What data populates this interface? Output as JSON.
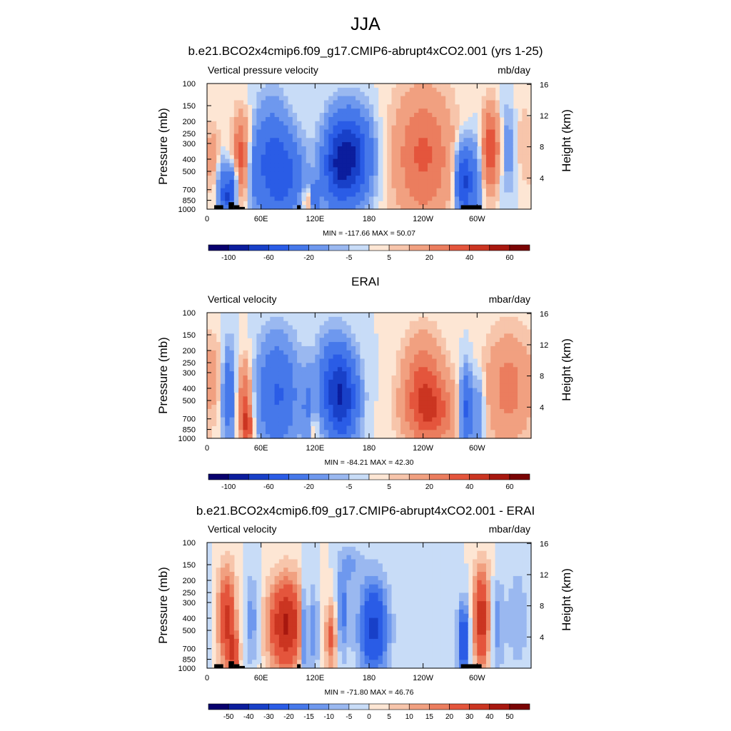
{
  "figure": {
    "title": "JJA"
  },
  "chart_data": [
    {
      "type": "heatmap",
      "title": "b.e21.BCO2x4cmip6.f09_g17.CMIP6-abrupt4xCO2.001 (yrs 1-25)",
      "left_label": "Vertical pressure velocity",
      "right_label": "mb/day",
      "xlabel": "",
      "ylabel": "Pressure (mb)",
      "ylabel_right": "Height (km)",
      "x_ticks": [
        "0",
        "60E",
        "120E",
        "180",
        "120W",
        "60W"
      ],
      "x_tick_lon": [
        0,
        60,
        120,
        180,
        240,
        300
      ],
      "xlim": [
        0,
        360
      ],
      "y_ticks": [
        "100",
        "150",
        "200",
        "250",
        "300",
        "400",
        "500",
        "700",
        "850",
        "1000"
      ],
      "y_tick_p": [
        100,
        150,
        200,
        250,
        300,
        400,
        500,
        700,
        850,
        1000
      ],
      "ylim": [
        1000,
        100
      ],
      "yscale": "log",
      "height_ticks": [
        "4",
        "8",
        "12",
        "16"
      ],
      "height_values_km": [
        4,
        8,
        12,
        16
      ],
      "stats": "MIN = -117.66  MAX =  50.07",
      "colorbar_labels": [
        "-100",
        "-60",
        "-20",
        "-5",
        "5",
        "20",
        "40",
        "60"
      ],
      "colorbar_label_slots": [
        1,
        3,
        5,
        7,
        9,
        11,
        13,
        15
      ],
      "levels": [
        -120,
        -100,
        -80,
        -60,
        -40,
        -20,
        -10,
        -5,
        0,
        5,
        10,
        20,
        30,
        40,
        50,
        60
      ],
      "min": -117.66,
      "max": 50.07,
      "topography": true,
      "features": [
        {
          "lon": 8,
          "p": 400,
          "v": 15,
          "sx": 6,
          "sy": 0.4
        },
        {
          "lon": 17,
          "p": 560,
          "v": -24,
          "sx": 5,
          "sy": 0.3
        },
        {
          "lon": 22,
          "p": 820,
          "v": -50,
          "sx": 5,
          "sy": 0.18
        },
        {
          "lon": 28,
          "p": 620,
          "v": -40,
          "sx": 4,
          "sy": 0.26
        },
        {
          "lon": 38,
          "p": 380,
          "v": 36,
          "sx": 7,
          "sy": 0.55
        },
        {
          "lon": 53,
          "p": 520,
          "v": -16,
          "sx": 6,
          "sy": 0.45
        },
        {
          "lon": 72,
          "p": 420,
          "v": -42,
          "sx": 14,
          "sy": 0.7
        },
        {
          "lon": 90,
          "p": 560,
          "v": -32,
          "sx": 14,
          "sy": 0.5
        },
        {
          "lon": 112,
          "p": 850,
          "v": 22,
          "sx": 4,
          "sy": 0.16
        },
        {
          "lon": 120,
          "p": 800,
          "v": -36,
          "sx": 4,
          "sy": 0.2
        },
        {
          "lon": 158,
          "p": 390,
          "v": -85,
          "sx": 16,
          "sy": 0.55
        },
        {
          "lon": 142,
          "p": 500,
          "v": -30,
          "sx": 10,
          "sy": 0.5
        },
        {
          "lon": 240,
          "p": 380,
          "v": 32,
          "sx": 24,
          "sy": 0.9
        },
        {
          "lon": 285,
          "p": 600,
          "v": -70,
          "sx": 6,
          "sy": 0.45
        },
        {
          "lon": 298,
          "p": 600,
          "v": -26,
          "sx": 5,
          "sy": 0.55
        },
        {
          "lon": 315,
          "p": 330,
          "v": 40,
          "sx": 7,
          "sy": 0.55
        },
        {
          "lon": 335,
          "p": 330,
          "v": -18,
          "sx": 6,
          "sy": 0.6
        },
        {
          "lon": 350,
          "p": 300,
          "v": 8,
          "sx": 10,
          "sy": 0.7
        }
      ]
    },
    {
      "type": "heatmap",
      "title": "ERAI",
      "left_label": "Vertical velocity",
      "right_label": "mbar/day",
      "xlabel": "",
      "ylabel": "Pressure (mb)",
      "ylabel_right": "Height (km)",
      "x_ticks": [
        "0",
        "60E",
        "120E",
        "180",
        "120W",
        "60W"
      ],
      "x_tick_lon": [
        0,
        60,
        120,
        180,
        240,
        300
      ],
      "xlim": [
        0,
        360
      ],
      "y_ticks": [
        "100",
        "150",
        "200",
        "250",
        "300",
        "400",
        "500",
        "700",
        "850",
        "1000"
      ],
      "y_tick_p": [
        100,
        150,
        200,
        250,
        300,
        400,
        500,
        700,
        850,
        1000
      ],
      "ylim": [
        1000,
        100
      ],
      "yscale": "log",
      "height_ticks": [
        "4",
        "8",
        "12",
        "16"
      ],
      "height_values_km": [
        4,
        8,
        12,
        16
      ],
      "stats": "MIN = -84.21  MAX =  42.30",
      "colorbar_labels": [
        "-100",
        "-60",
        "-20",
        "-5",
        "5",
        "20",
        "40",
        "60"
      ],
      "colorbar_label_slots": [
        1,
        3,
        5,
        7,
        9,
        11,
        13,
        15
      ],
      "levels": [
        -120,
        -100,
        -80,
        -60,
        -40,
        -20,
        -10,
        -5,
        0,
        5,
        10,
        20,
        30,
        40,
        50,
        60
      ],
      "min": -84.21,
      "max": 42.3,
      "topography": false,
      "features": [
        {
          "lon": 8,
          "p": 300,
          "v": 8,
          "sx": 6,
          "sy": 0.5
        },
        {
          "lon": 24,
          "p": 450,
          "v": -36,
          "sx": 5,
          "sy": 0.6
        },
        {
          "lon": 42,
          "p": 520,
          "v": 33,
          "sx": 6,
          "sy": 0.55
        },
        {
          "lon": 45,
          "p": 800,
          "v": 30,
          "sx": 4,
          "sy": 0.2
        },
        {
          "lon": 78,
          "p": 450,
          "v": -42,
          "sx": 16,
          "sy": 0.7
        },
        {
          "lon": 112,
          "p": 600,
          "v": -18,
          "sx": 5,
          "sy": 0.5
        },
        {
          "lon": 118,
          "p": 830,
          "v": 14,
          "sx": 4,
          "sy": 0.2
        },
        {
          "lon": 150,
          "p": 480,
          "v": -70,
          "sx": 12,
          "sy": 0.55
        },
        {
          "lon": 138,
          "p": 350,
          "v": -26,
          "sx": 12,
          "sy": 0.6
        },
        {
          "lon": 240,
          "p": 330,
          "v": 28,
          "sx": 16,
          "sy": 0.6
        },
        {
          "lon": 250,
          "p": 650,
          "v": 30,
          "sx": 22,
          "sy": 0.45
        },
        {
          "lon": 288,
          "p": 600,
          "v": -50,
          "sx": 5,
          "sy": 0.5
        },
        {
          "lon": 302,
          "p": 620,
          "v": -22,
          "sx": 5,
          "sy": 0.5
        },
        {
          "lon": 335,
          "p": 400,
          "v": 24,
          "sx": 20,
          "sy": 0.75
        }
      ]
    },
    {
      "type": "heatmap",
      "title": "b.e21.BCO2x4cmip6.f09_g17.CMIP6-abrupt4xCO2.001 - ERAI",
      "left_label": "Vertical velocity",
      "right_label": "mbar/day",
      "xlabel": "",
      "ylabel": "Pressure (mb)",
      "ylabel_right": "Height (km)",
      "x_ticks": [
        "0",
        "60E",
        "120E",
        "180",
        "120W",
        "60W"
      ],
      "x_tick_lon": [
        0,
        60,
        120,
        180,
        240,
        300
      ],
      "xlim": [
        0,
        360
      ],
      "y_ticks": [
        "100",
        "150",
        "200",
        "250",
        "300",
        "400",
        "500",
        "700",
        "850",
        "1000"
      ],
      "y_tick_p": [
        100,
        150,
        200,
        250,
        300,
        400,
        500,
        700,
        850,
        1000
      ],
      "ylim": [
        1000,
        100
      ],
      "yscale": "log",
      "height_ticks": [
        "4",
        "8",
        "12",
        "16"
      ],
      "height_values_km": [
        4,
        8,
        12,
        16
      ],
      "stats": "MIN = -71.80  MAX =  46.76",
      "colorbar_labels": [
        "-50",
        "-40",
        "-30",
        "-20",
        "-15",
        "-10",
        "-5",
        "0",
        "5",
        "10",
        "15",
        "20",
        "30",
        "40",
        "50"
      ],
      "colorbar_label_slots": [
        1,
        2,
        3,
        4,
        5,
        6,
        7,
        8,
        9,
        10,
        11,
        12,
        13,
        14,
        15
      ],
      "levels": [
        -60,
        -50,
        -40,
        -30,
        -20,
        -15,
        -10,
        -5,
        0,
        5,
        10,
        15,
        20,
        30,
        40,
        50
      ],
      "min": -71.8,
      "max": 46.76,
      "topography": true,
      "features": [
        {
          "lon": 22,
          "p": 400,
          "v": 32,
          "sx": 7,
          "sy": 0.65
        },
        {
          "lon": 30,
          "p": 750,
          "v": 25,
          "sx": 4,
          "sy": 0.25
        },
        {
          "lon": 50,
          "p": 420,
          "v": -14,
          "sx": 5,
          "sy": 0.6
        },
        {
          "lon": 88,
          "p": 450,
          "v": 42,
          "sx": 14,
          "sy": 0.6
        },
        {
          "lon": 108,
          "p": 500,
          "v": -30,
          "sx": 3,
          "sy": 0.6
        },
        {
          "lon": 118,
          "p": 500,
          "v": -18,
          "sx": 4,
          "sy": 0.6
        },
        {
          "lon": 138,
          "p": 560,
          "v": 22,
          "sx": 5,
          "sy": 0.45
        },
        {
          "lon": 150,
          "p": 350,
          "v": -18,
          "sx": 5,
          "sy": 0.6
        },
        {
          "lon": 160,
          "p": 150,
          "v": -10,
          "sx": 8,
          "sy": 0.25
        },
        {
          "lon": 185,
          "p": 480,
          "v": -32,
          "sx": 12,
          "sy": 0.65
        },
        {
          "lon": 285,
          "p": 600,
          "v": -30,
          "sx": 5,
          "sy": 0.5
        },
        {
          "lon": 305,
          "p": 400,
          "v": 36,
          "sx": 7,
          "sy": 0.65
        },
        {
          "lon": 322,
          "p": 450,
          "v": -14,
          "sx": 6,
          "sy": 0.6
        },
        {
          "lon": 345,
          "p": 400,
          "v": -10,
          "sx": 8,
          "sy": 0.7
        }
      ]
    }
  ],
  "palette": [
    "#08006e",
    "#0b1d9d",
    "#1840c8",
    "#2a5ce6",
    "#4678ea",
    "#6e98ee",
    "#9ab8f0",
    "#c8dcf7",
    "#fde6d4",
    "#f7c5ab",
    "#f1a080",
    "#eb7d5e",
    "#e4553c",
    "#cb3521",
    "#a8180f",
    "#7a0404"
  ]
}
